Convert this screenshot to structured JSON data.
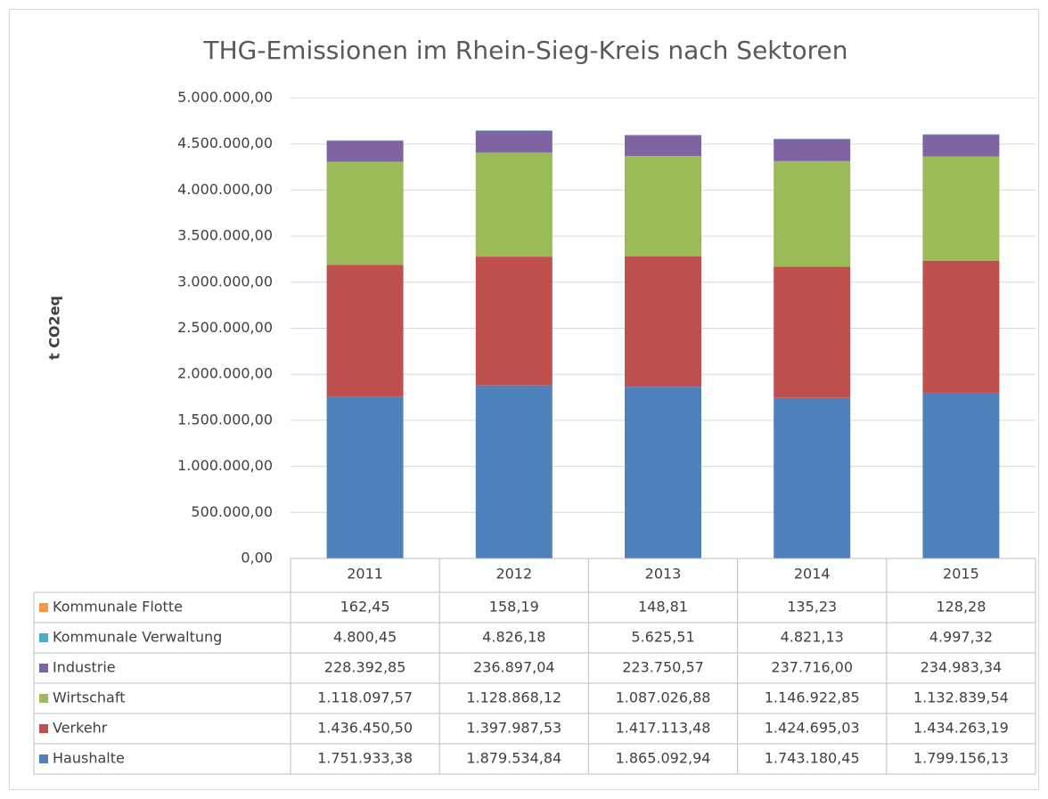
{
  "chart_data": {
    "type": "stacked_bar",
    "title": "THG-Emissionen im Rhein-Sieg-Kreis nach Sektoren",
    "y_label": "t CO2eq",
    "categories": [
      "2011",
      "2012",
      "2013",
      "2014",
      "2015"
    ],
    "series": [
      {
        "name": "Haushalte",
        "color": "#4f81bd",
        "values": [
          1751933.38,
          1879534.84,
          1865092.94,
          1743180.45,
          1799156.13
        ],
        "value_labels": [
          "1.751.933,38",
          "1.879.534,84",
          "1.865.092,94",
          "1.743.180,45",
          "1.799.156,13"
        ]
      },
      {
        "name": "Verkehr",
        "color": "#c0504d",
        "values": [
          1436450.5,
          1397987.53,
          1417113.48,
          1424695.03,
          1434263.19
        ],
        "value_labels": [
          "1.436.450,50",
          "1.397.987,53",
          "1.417.113,48",
          "1.424.695,03",
          "1.434.263,19"
        ]
      },
      {
        "name": "Wirtschaft",
        "color": "#9bbb59",
        "values": [
          1118097.57,
          1128868.12,
          1087026.88,
          1146922.85,
          1132839.54
        ],
        "value_labels": [
          "1.118.097,57",
          "1.128.868,12",
          "1.087.026,88",
          "1.146.922,85",
          "1.132.839,54"
        ]
      },
      {
        "name": "Industrie",
        "color": "#8064a2",
        "values": [
          228392.85,
          236897.04,
          223750.57,
          237716.0,
          234983.34
        ],
        "value_labels": [
          "228.392,85",
          "236.897,04",
          "223.750,57",
          "237.716,00",
          "234.983,34"
        ]
      },
      {
        "name": "Kommunale Verwaltung",
        "color": "#4bacc6",
        "values": [
          4800.45,
          4826.18,
          5625.51,
          4821.13,
          4997.32
        ],
        "value_labels": [
          "4.800,45",
          "4.826,18",
          "5.625,51",
          "4.821,13",
          "4.997,32"
        ]
      },
      {
        "name": "Kommunale Flotte",
        "color": "#f79646",
        "values": [
          162.45,
          158.19,
          148.81,
          135.23,
          128.28
        ],
        "value_labels": [
          "162,45",
          "158,19",
          "148,81",
          "135,23",
          "128,28"
        ]
      }
    ],
    "ylim": [
      0,
      5000000
    ],
    "yticks": [
      {
        "value": 0,
        "label": "0,00"
      },
      {
        "value": 500000,
        "label": "500.000,00"
      },
      {
        "value": 1000000,
        "label": "1.000.000,00"
      },
      {
        "value": 1500000,
        "label": "1.500.000,00"
      },
      {
        "value": 2000000,
        "label": "2.000.000,00"
      },
      {
        "value": 2500000,
        "label": "2.500.000,00"
      },
      {
        "value": 3000000,
        "label": "3.000.000,00"
      },
      {
        "value": 3500000,
        "label": "3.500.000,00"
      },
      {
        "value": 4000000,
        "label": "4.000.000,00"
      },
      {
        "value": 4500000,
        "label": "4.500.000,00"
      },
      {
        "value": 5000000,
        "label": "5.000.000,00"
      }
    ],
    "grid": true
  }
}
